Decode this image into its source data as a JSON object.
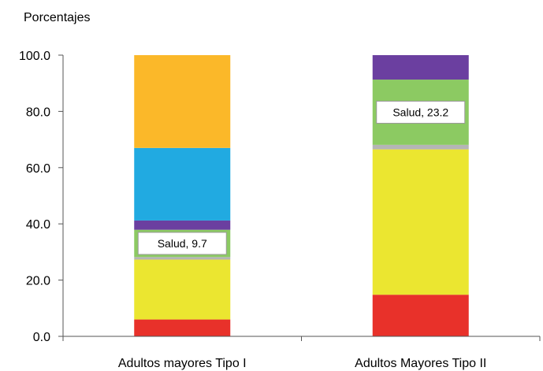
{
  "chart_data": {
    "type": "bar",
    "stacked": true,
    "ylabel": "Porcentajes",
    "ylim": [
      0,
      100
    ],
    "yticks": [
      "0.0",
      "20.0",
      "40.0",
      "60.0",
      "80.0",
      "100.0"
    ],
    "grid": false,
    "legend": "none",
    "categories": [
      "Adultos mayores Tipo I",
      "Adultos Mayores Tipo II"
    ],
    "series": [
      {
        "color": "#e8312a",
        "values": [
          6.0,
          14.8
        ]
      },
      {
        "color": "#ebe630",
        "values": [
          21.3,
          51.7
        ]
      },
      {
        "color": "#b5b5b5",
        "values": [
          0.9,
          1.6
        ]
      },
      {
        "name": "Salud",
        "color": "#8cca62",
        "values": [
          9.7,
          23.2
        ]
      },
      {
        "color": "#6b3fa0",
        "values": [
          3.3,
          8.7
        ]
      },
      {
        "color": "#21aae1",
        "values": [
          25.8,
          0
        ]
      },
      {
        "color": "#fbb829",
        "values": [
          33.0,
          0
        ]
      }
    ],
    "annotations": [
      {
        "category": "Adultos mayores Tipo I",
        "text": "Salud, 9.7"
      },
      {
        "category": "Adultos Mayores Tipo II",
        "text": "Salud, 23.2"
      }
    ]
  }
}
